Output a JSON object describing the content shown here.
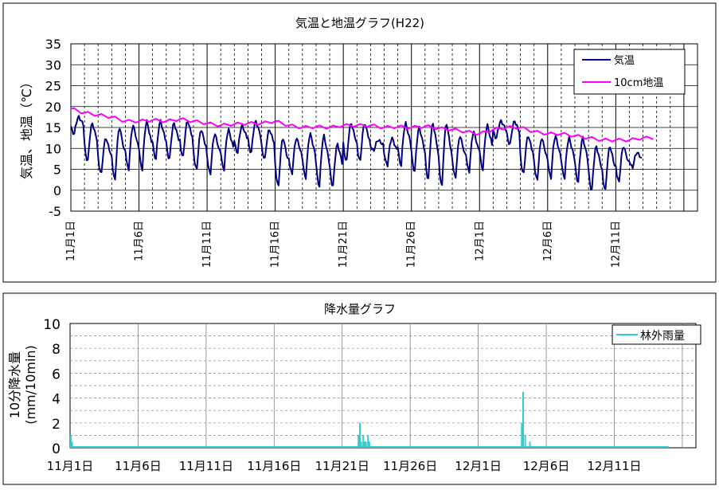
{
  "chart_data": [
    {
      "type": "line",
      "title": "気温と地温グラフ(H22)",
      "ylabel": "気温、地温（℃）",
      "xlabel": "",
      "ylim": [
        -5,
        35
      ],
      "yticks": [
        -5,
        0,
        5,
        10,
        15,
        20,
        25,
        30,
        35
      ],
      "xlim_days": 46,
      "xtick_labels": [
        "11月1日",
        "11月6日",
        "11月11日",
        "11月16日",
        "11月21日",
        "11月26日",
        "12月1日",
        "12月6日",
        "12月11日"
      ],
      "xtick_days": [
        0,
        5,
        10,
        15,
        20,
        25,
        30,
        35,
        40
      ],
      "grid": true,
      "legend_position": "top-right",
      "series": [
        {
          "name": "気温",
          "color": "#000080",
          "daily_max": [
            17.5,
            16,
            12.5,
            15,
            15.5,
            16.5,
            16.5,
            16,
            16.5,
            14.5,
            13.5,
            14.5,
            15.5,
            16.5,
            14.5,
            12.5,
            12.5,
            13.5,
            13,
            11,
            16,
            16,
            12,
            12.5,
            16,
            15,
            16,
            16,
            13,
            14,
            15.5,
            16.5,
            16.5,
            13,
            12.5,
            13,
            12.5,
            12.5,
            10.5,
            10.5,
            10.5,
            9
          ],
          "daily_min": [
            13.5,
            7,
            4,
            2.5,
            5,
            5,
            7.5,
            7.5,
            8,
            5,
            4,
            5,
            9,
            9,
            7.5,
            1,
            4,
            3,
            1,
            1,
            7,
            7,
            9.5,
            6,
            6,
            4.5,
            2.5,
            1,
            3,
            4.5,
            5,
            12.5,
            11,
            4,
            2.5,
            3,
            3,
            2,
            0,
            0,
            2,
            5.5
          ]
        },
        {
          "name": "10cm地温",
          "color": "#ff00ff",
          "daily_mean": [
            19.5,
            18.5,
            18,
            17.5,
            16.5,
            16.5,
            16.8,
            16.5,
            17,
            16.5,
            16,
            15.5,
            15.8,
            16,
            16,
            16.5,
            15.5,
            15,
            15.2,
            15,
            15.5,
            15.5,
            15.5,
            15,
            15.2,
            15,
            15.3,
            14.8,
            14.5,
            14,
            13.5,
            14.5,
            15,
            15,
            14,
            13.5,
            13.5,
            13,
            12.5,
            12,
            12,
            12,
            12.5
          ]
        }
      ]
    },
    {
      "type": "bar",
      "title": "降水量グラフ",
      "ylabel": "10分降水量\n(mm/10min)",
      "xlabel": "",
      "ylim": [
        0,
        10
      ],
      "yticks": [
        0,
        2,
        4,
        6,
        8,
        10
      ],
      "xlim_days": 46,
      "xtick_labels": [
        "11月1日",
        "11月6日",
        "11月11日",
        "11月16日",
        "11月21日",
        "11月26日",
        "12月1日",
        "12月6日",
        "12月11日"
      ],
      "xtick_days": [
        0,
        5,
        10,
        15,
        20,
        25,
        30,
        35,
        40
      ],
      "grid": true,
      "legend_position": "top-right",
      "series": [
        {
          "name": "林外雨量",
          "color": "#33cccc",
          "events": [
            {
              "day": 0.05,
              "value": 1.0
            },
            {
              "day": 0.15,
              "value": 0.5
            },
            {
              "day": 21.2,
              "value": 1.0
            },
            {
              "day": 21.3,
              "value": 2.0
            },
            {
              "day": 21.4,
              "value": 0.5
            },
            {
              "day": 21.55,
              "value": 1.0
            },
            {
              "day": 21.65,
              "value": 0.5
            },
            {
              "day": 21.75,
              "value": 0.5
            },
            {
              "day": 21.9,
              "value": 1.0
            },
            {
              "day": 22.0,
              "value": 0.5
            },
            {
              "day": 33.2,
              "value": 2.0
            },
            {
              "day": 33.3,
              "value": 4.5
            },
            {
              "day": 33.45,
              "value": 1.0
            },
            {
              "day": 33.8,
              "value": 0.5
            }
          ]
        }
      ]
    }
  ]
}
